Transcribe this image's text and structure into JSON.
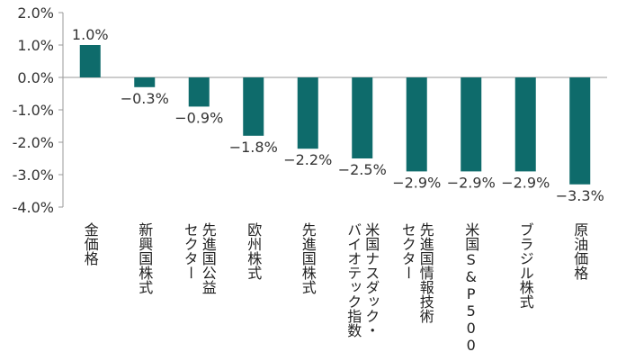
{
  "chart_data": {
    "type": "bar",
    "categories": [
      [
        "金価格"
      ],
      [
        "新興国株式"
      ],
      [
        "先進国公益",
        "セクター"
      ],
      [
        "欧州株式"
      ],
      [
        "先進国株式"
      ],
      [
        "米国ナスダック・",
        "バイオテック指数"
      ],
      [
        "先進国情報技術",
        "セクター"
      ],
      [
        "米国S&P500"
      ],
      [
        "ブラジル株式"
      ],
      [
        "原油価格"
      ]
    ],
    "values": [
      1.0,
      -0.3,
      -0.9,
      -1.8,
      -2.2,
      -2.5,
      -2.9,
      -2.9,
      -2.9,
      -3.3
    ],
    "value_labels": [
      "1.0%",
      "−0.3%",
      "−0.9%",
      "−1.8%",
      "−2.2%",
      "−2.5%",
      "−2.9%",
      "−2.9%",
      "−2.9%",
      "−3.3%"
    ],
    "y_ticks": [
      2.0,
      1.0,
      0.0,
      -1.0,
      -2.0,
      -3.0,
      -4.0
    ],
    "y_tick_labels": [
      "2.0%",
      "1.0%",
      "0.0%",
      "-1.0%",
      "-2.0%",
      "-3.0%",
      "-4.0%"
    ],
    "ylim": [
      -4.0,
      2.0
    ],
    "title": "",
    "xlabel": "",
    "ylabel": "",
    "bar_color": "#0e6b6b",
    "axis_color": "#9a9a9a"
  }
}
